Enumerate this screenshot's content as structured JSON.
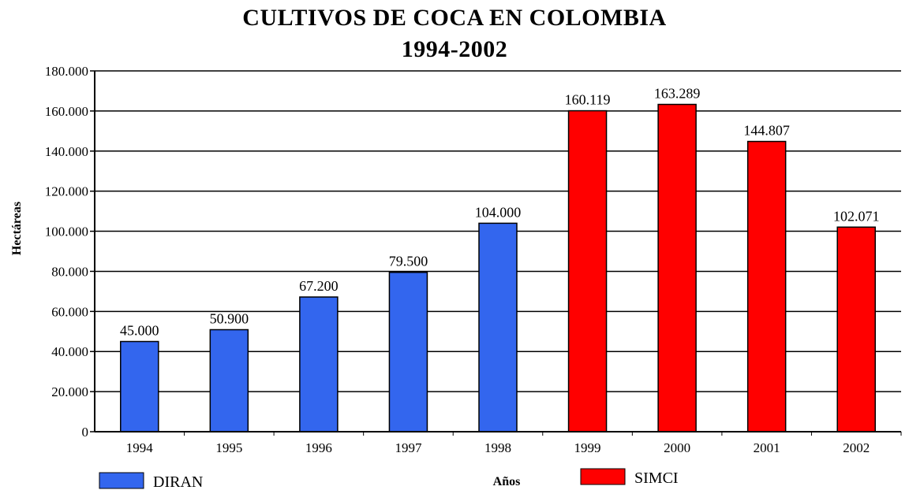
{
  "chart_data": {
    "type": "bar",
    "title": "CULTIVOS DE COCA EN COLOMBIA",
    "subtitle": "1994-2002",
    "xlabel": "Años",
    "ylabel": "Hectáreas",
    "categories": [
      "1994",
      "1995",
      "1996",
      "1997",
      "1998",
      "1999",
      "2000",
      "2001",
      "2002"
    ],
    "values": [
      45000,
      50900,
      67200,
      79500,
      104000,
      160119,
      163289,
      144807,
      102071
    ],
    "value_labels": [
      "45.000",
      "50.900",
      "67.200",
      "79.500",
      "104.000",
      "160.119",
      "163.289",
      "144.807",
      "102.071"
    ],
    "series_of_bar": [
      "DIRAN",
      "DIRAN",
      "DIRAN",
      "DIRAN",
      "DIRAN",
      "SIMCI",
      "SIMCI",
      "SIMCI",
      "SIMCI"
    ],
    "legend": [
      {
        "name": "DIRAN",
        "color": "#3366ee"
      },
      {
        "name": "SIMCI",
        "color": "#ff0000"
      }
    ],
    "ylim": [
      0,
      180000
    ],
    "yticks": [
      0,
      20000,
      40000,
      60000,
      80000,
      100000,
      120000,
      140000,
      160000,
      180000
    ],
    "ytick_labels": [
      "0",
      "20.000",
      "40.000",
      "60.000",
      "80.000",
      "100.000",
      "120.000",
      "140.000",
      "160.000",
      "180.000"
    ],
    "grid": true,
    "legend_position": "bottom"
  }
}
